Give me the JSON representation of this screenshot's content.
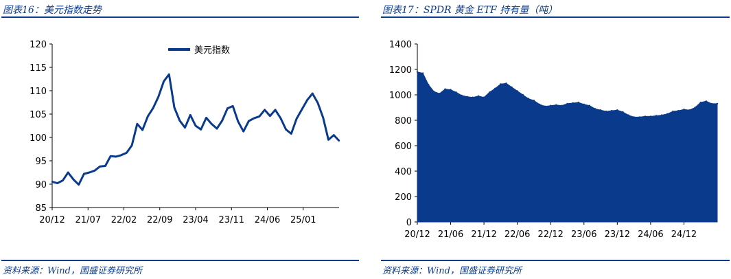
{
  "left": {
    "title": "图表16：美元指数走势",
    "source": "资料来源：Wind，国盛证券研究所"
  },
  "right": {
    "title": "图表17：SPDR 黄金 ETF 持有量（吨）",
    "source": "资料来源：Wind，国盛证券研究所"
  },
  "chart_data": [
    {
      "type": "line",
      "title": "",
      "xlabel": "",
      "ylabel": "",
      "ylim": [
        85,
        120
      ],
      "y_ticks": [
        85,
        90,
        95,
        100,
        105,
        110,
        115,
        120
      ],
      "x_ticks": [
        "20/12",
        "21/07",
        "22/02",
        "22/09",
        "23/04",
        "23/11",
        "24/06",
        "25/01"
      ],
      "legend_position": "top-center",
      "grid": false,
      "series": [
        {
          "name": "美元指数",
          "color": "#0a3a8c",
          "x": [
            "2020-12",
            "2021-01",
            "2021-02",
            "2021-03",
            "2021-04",
            "2021-05",
            "2021-06",
            "2021-07",
            "2021-08",
            "2021-09",
            "2021-10",
            "2021-11",
            "2021-12",
            "2022-01",
            "2022-02",
            "2022-03",
            "2022-04",
            "2022-05",
            "2022-06",
            "2022-07",
            "2022-08",
            "2022-09",
            "2022-10",
            "2022-11",
            "2022-12",
            "2023-01",
            "2023-02",
            "2023-03",
            "2023-04",
            "2023-05",
            "2023-06",
            "2023-07",
            "2023-08",
            "2023-09",
            "2023-10",
            "2023-11",
            "2023-12",
            "2024-01",
            "2024-02",
            "2024-03",
            "2024-04",
            "2024-05",
            "2024-06",
            "2024-07",
            "2024-08",
            "2024-09",
            "2024-10",
            "2024-11",
            "2024-12",
            "2025-01",
            "2025-02",
            "2025-03",
            "2025-04",
            "2025-05",
            "2025-06"
          ],
          "values": [
            90.5,
            90.2,
            90.8,
            92.5,
            91.0,
            89.9,
            92.2,
            92.5,
            92.9,
            93.8,
            93.9,
            96.0,
            95.9,
            96.2,
            96.7,
            98.3,
            102.9,
            101.6,
            104.5,
            106.3,
            108.7,
            112.0,
            113.5,
            106.4,
            103.6,
            102.1,
            104.8,
            102.5,
            101.7,
            104.2,
            102.9,
            101.9,
            103.6,
            106.2,
            106.7,
            103.4,
            101.3,
            103.5,
            104.1,
            104.5,
            105.9,
            104.6,
            105.9,
            104.1,
            101.7,
            100.8,
            104.0,
            106.0,
            108.0,
            109.4,
            107.4,
            104.2,
            99.5,
            100.5,
            99.3
          ]
        }
      ]
    },
    {
      "type": "area",
      "title": "",
      "xlabel": "",
      "ylabel": "",
      "ylim": [
        0,
        1400
      ],
      "y_ticks": [
        0,
        200,
        400,
        600,
        800,
        1000,
        1200,
        1400
      ],
      "x_ticks": [
        "20/12",
        "21/06",
        "21/12",
        "22/06",
        "22/12",
        "23/06",
        "23/12",
        "24/06",
        "24/12"
      ],
      "grid": false,
      "series": [
        {
          "name": "",
          "color": "#0a3a8c",
          "x": [
            "2020-12",
            "2021-01",
            "2021-02",
            "2021-03",
            "2021-04",
            "2021-05",
            "2021-06",
            "2021-07",
            "2021-08",
            "2021-09",
            "2021-10",
            "2021-11",
            "2021-12",
            "2022-01",
            "2022-02",
            "2022-03",
            "2022-04",
            "2022-05",
            "2022-06",
            "2022-07",
            "2022-08",
            "2022-09",
            "2022-10",
            "2022-11",
            "2022-12",
            "2023-01",
            "2023-02",
            "2023-03",
            "2023-04",
            "2023-05",
            "2023-06",
            "2023-07",
            "2023-08",
            "2023-09",
            "2023-10",
            "2023-11",
            "2023-12",
            "2024-01",
            "2024-02",
            "2024-03",
            "2024-04",
            "2024-05",
            "2024-06",
            "2024-07",
            "2024-08",
            "2024-09",
            "2024-10",
            "2024-11",
            "2024-12",
            "2025-01",
            "2025-02",
            "2025-03",
            "2025-04",
            "2025-05",
            "2025-06"
          ],
          "values": [
            1180,
            1170,
            1080,
            1025,
            1010,
            1045,
            1040,
            1020,
            995,
            985,
            980,
            990,
            980,
            1020,
            1050,
            1085,
            1090,
            1060,
            1030,
            1000,
            970,
            955,
            925,
            910,
            915,
            920,
            915,
            930,
            935,
            940,
            925,
            915,
            890,
            880,
            870,
            875,
            880,
            865,
            840,
            825,
            825,
            830,
            830,
            835,
            840,
            850,
            870,
            875,
            885,
            880,
            900,
            940,
            950,
            930,
            930
          ]
        }
      ]
    }
  ]
}
